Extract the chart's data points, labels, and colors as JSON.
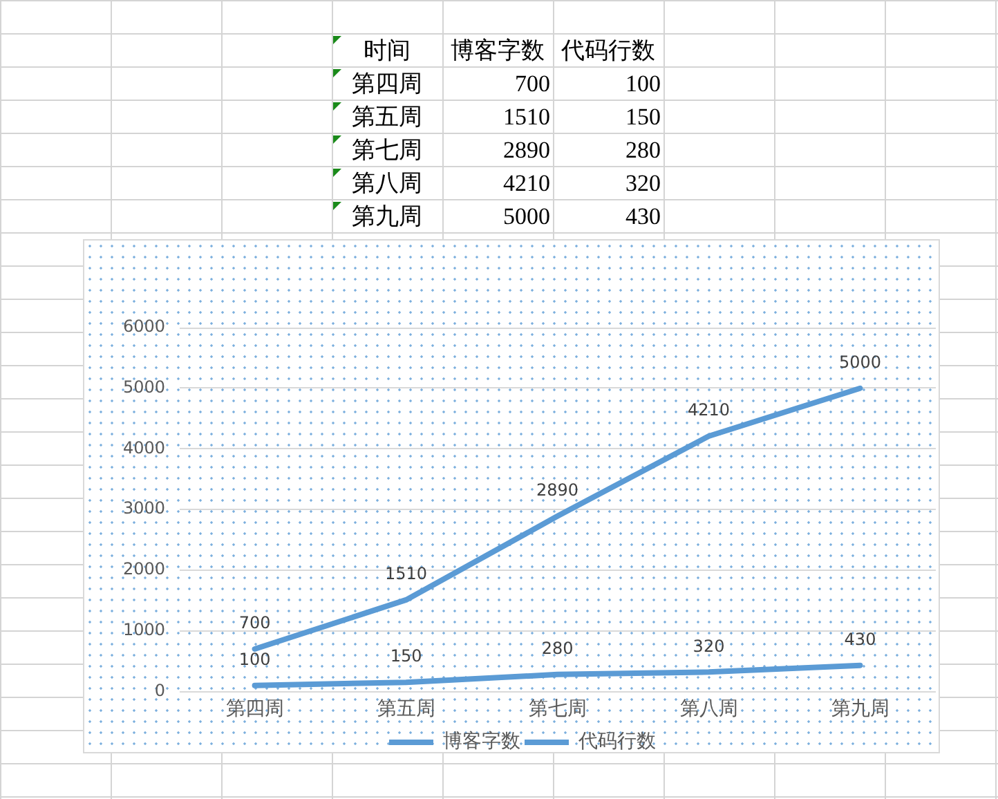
{
  "chart_data": [
    {
      "type": "other",
      "xlabel": "时间",
      "categories": [
        "第四周",
        "第五周",
        "第七周",
        "第八周",
        "第九周"
      ],
      "series": [
        {
          "name": "博客字数",
          "values": [
            700,
            1510,
            2890,
            4210,
            5000
          ]
        },
        {
          "name": "代码行数",
          "values": [
            100,
            150,
            280,
            320,
            430
          ]
        }
      ],
      "data_labels": true
    },
    {
      "type": "line",
      "categories": [
        "第四周",
        "第五周",
        "第七周",
        "第八周",
        "第九周"
      ],
      "series": [
        {
          "name": "博客字数",
          "color": "#5b9bd5",
          "values": [
            700,
            1510,
            2890,
            4210,
            5000
          ]
        },
        {
          "name": "代码行数",
          "color": "#5b9bd5",
          "values": [
            100,
            150,
            280,
            320,
            430
          ]
        }
      ],
      "ylim": [
        0,
        6000
      ],
      "yticks": [
        0,
        1000,
        2000,
        3000,
        4000,
        5000,
        6000
      ],
      "grid": "y",
      "legend": "bottom",
      "marker": "none",
      "line_style": "solid",
      "data_labels": true
    }
  ]
}
